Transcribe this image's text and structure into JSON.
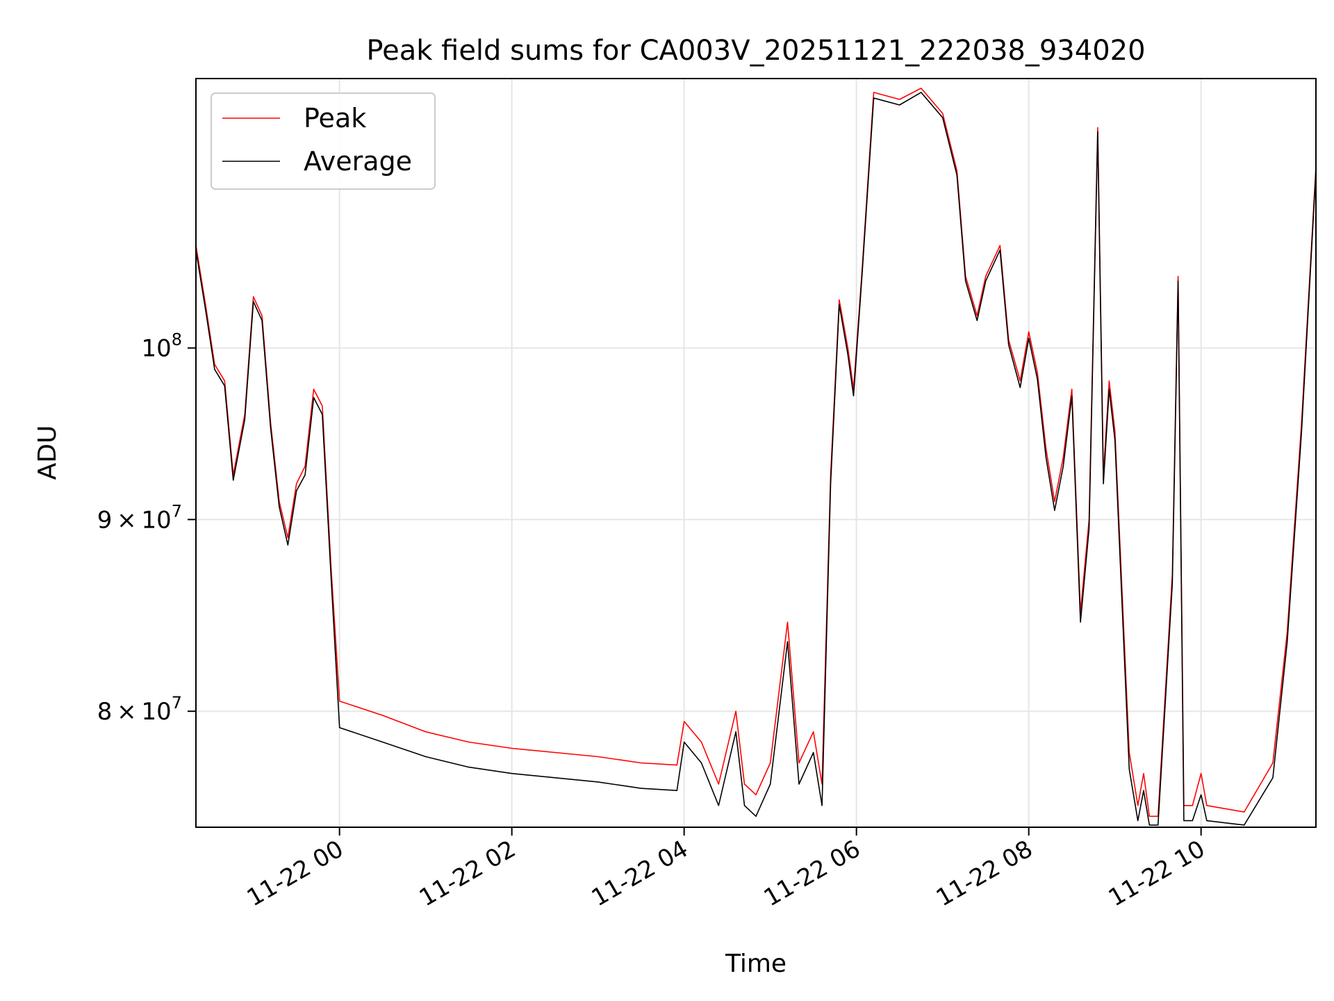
{
  "chart_data": {
    "type": "line",
    "title": "Peak field sums for CA003V_20251121_222038_934020",
    "xlabel": "Time",
    "ylabel": "ADU",
    "xscale": "time",
    "yscale": "log",
    "xlim": [
      "2025-11-21 22:20",
      "2025-11-22 11:20"
    ],
    "ylim": [
      74500000,
      118000000
    ],
    "x_tick_labels": [
      "11-22 00",
      "11-22 02",
      "11-22 04",
      "11-22 06",
      "11-22 08",
      "11-22 10"
    ],
    "x_ticks": [
      "2025-11-22 00:00",
      "2025-11-22 02:00",
      "2025-11-22 04:00",
      "2025-11-22 06:00",
      "2025-11-22 08:00",
      "2025-11-22 10:00"
    ],
    "y_ticks": [
      {
        "value": 80000000,
        "mantissa": "8",
        "base": "10",
        "exponent": "7"
      },
      {
        "value": 90000000,
        "mantissa": "9",
        "base": "10",
        "exponent": "7"
      },
      {
        "value": 100000000,
        "mantissa": "",
        "base": "10",
        "exponent": "8"
      }
    ],
    "grid": true,
    "legend": {
      "placement": "top-left"
    },
    "series": [
      {
        "name": "Peak",
        "color": "#ff0000",
        "x": [
          "2025-11-21 22:20",
          "2025-11-21 22:27",
          "2025-11-21 22:33",
          "2025-11-21 22:40",
          "2025-11-21 22:46",
          "2025-11-21 22:54",
          "2025-11-21 23:00",
          "2025-11-21 23:06",
          "2025-11-21 23:12",
          "2025-11-21 23:18",
          "2025-11-21 23:24",
          "2025-11-21 23:30",
          "2025-11-21 23:36",
          "2025-11-21 23:42",
          "2025-11-21 23:48",
          "2025-11-21 23:54",
          "2025-11-22 00:00",
          "2025-11-22 00:30",
          "2025-11-22 01:00",
          "2025-11-22 01:30",
          "2025-11-22 02:00",
          "2025-11-22 02:30",
          "2025-11-22 03:00",
          "2025-11-22 03:30",
          "2025-11-22 03:55",
          "2025-11-22 04:00",
          "2025-11-22 04:12",
          "2025-11-22 04:24",
          "2025-11-22 04:36",
          "2025-11-22 04:42",
          "2025-11-22 04:50",
          "2025-11-22 05:00",
          "2025-11-22 05:12",
          "2025-11-22 05:20",
          "2025-11-22 05:30",
          "2025-11-22 05:36",
          "2025-11-22 05:42",
          "2025-11-22 05:48",
          "2025-11-22 05:54",
          "2025-11-22 05:58",
          "2025-11-22 06:04",
          "2025-11-22 06:12",
          "2025-11-22 06:30",
          "2025-11-22 06:45",
          "2025-11-22 07:00",
          "2025-11-22 07:10",
          "2025-11-22 07:16",
          "2025-11-22 07:24",
          "2025-11-22 07:30",
          "2025-11-22 07:40",
          "2025-11-22 07:46",
          "2025-11-22 07:54",
          "2025-11-22 08:00",
          "2025-11-22 08:06",
          "2025-11-22 08:12",
          "2025-11-22 08:18",
          "2025-11-22 08:24",
          "2025-11-22 08:30",
          "2025-11-22 08:36",
          "2025-11-22 08:42",
          "2025-11-22 08:48",
          "2025-11-22 08:52",
          "2025-11-22 08:56",
          "2025-11-22 09:00",
          "2025-11-22 09:10",
          "2025-11-22 09:16",
          "2025-11-22 09:20",
          "2025-11-22 09:24",
          "2025-11-22 09:30",
          "2025-11-22 09:40",
          "2025-11-22 09:44",
          "2025-11-22 09:48",
          "2025-11-22 09:54",
          "2025-11-22 10:00",
          "2025-11-22 10:04",
          "2025-11-22 10:30",
          "2025-11-22 10:50",
          "2025-11-22 11:00",
          "2025-11-22 11:10",
          "2025-11-22 11:20"
        ],
        "values": [
          106500000,
          102500000,
          99000000,
          98000000,
          92500000,
          96000000,
          103200000,
          102000000,
          95500000,
          91000000,
          89000000,
          92000000,
          93000000,
          97500000,
          96500000,
          87500000,
          80500000,
          79800000,
          79000000,
          78500000,
          78200000,
          78000000,
          77800000,
          77500000,
          77400000,
          79500000,
          78500000,
          76500000,
          80000000,
          76500000,
          76000000,
          77500000,
          84500000,
          77500000,
          79000000,
          76500000,
          92500000,
          103000000,
          100000000,
          97500000,
          105000000,
          117000000,
          116500000,
          117300000,
          115500000,
          111500000,
          104500000,
          102000000,
          104500000,
          106500000,
          100500000,
          98000000,
          101000000,
          98500000,
          94000000,
          91000000,
          93500000,
          97500000,
          85000000,
          90000000,
          114500000,
          92500000,
          98000000,
          95000000,
          78000000,
          75500000,
          77000000,
          75000000,
          75000000,
          87000000,
          104500000,
          75500000,
          75500000,
          77000000,
          75500000,
          75200000,
          77500000,
          84000000,
          95500000,
          111800000
        ]
      },
      {
        "name": "Average",
        "color": "#000000",
        "x": [
          "2025-11-21 22:20",
          "2025-11-21 22:27",
          "2025-11-21 22:33",
          "2025-11-21 22:40",
          "2025-11-21 22:46",
          "2025-11-21 22:54",
          "2025-11-21 23:00",
          "2025-11-21 23:06",
          "2025-11-21 23:12",
          "2025-11-21 23:18",
          "2025-11-21 23:24",
          "2025-11-21 23:30",
          "2025-11-21 23:36",
          "2025-11-21 23:42",
          "2025-11-21 23:48",
          "2025-11-21 23:54",
          "2025-11-22 00:00",
          "2025-11-22 00:30",
          "2025-11-22 01:00",
          "2025-11-22 01:30",
          "2025-11-22 02:00",
          "2025-11-22 02:30",
          "2025-11-22 03:00",
          "2025-11-22 03:30",
          "2025-11-22 03:55",
          "2025-11-22 04:00",
          "2025-11-22 04:12",
          "2025-11-22 04:24",
          "2025-11-22 04:36",
          "2025-11-22 04:42",
          "2025-11-22 04:50",
          "2025-11-22 05:00",
          "2025-11-22 05:12",
          "2025-11-22 05:20",
          "2025-11-22 05:30",
          "2025-11-22 05:36",
          "2025-11-22 05:42",
          "2025-11-22 05:48",
          "2025-11-22 05:54",
          "2025-11-22 05:58",
          "2025-11-22 06:04",
          "2025-11-22 06:12",
          "2025-11-22 06:30",
          "2025-11-22 06:45",
          "2025-11-22 07:00",
          "2025-11-22 07:10",
          "2025-11-22 07:16",
          "2025-11-22 07:24",
          "2025-11-22 07:30",
          "2025-11-22 07:40",
          "2025-11-22 07:46",
          "2025-11-22 07:54",
          "2025-11-22 08:00",
          "2025-11-22 08:06",
          "2025-11-22 08:12",
          "2025-11-22 08:18",
          "2025-11-22 08:24",
          "2025-11-22 08:30",
          "2025-11-22 08:36",
          "2025-11-22 08:42",
          "2025-11-22 08:48",
          "2025-11-22 08:52",
          "2025-11-22 08:56",
          "2025-11-22 09:00",
          "2025-11-22 09:10",
          "2025-11-22 09:16",
          "2025-11-22 09:20",
          "2025-11-22 09:24",
          "2025-11-22 09:30",
          "2025-11-22 09:40",
          "2025-11-22 09:44",
          "2025-11-22 09:48",
          "2025-11-22 09:54",
          "2025-11-22 10:00",
          "2025-11-22 10:04",
          "2025-11-22 10:30",
          "2025-11-22 10:50",
          "2025-11-22 11:00",
          "2025-11-22 11:10",
          "2025-11-22 11:20"
        ],
        "values": [
          106200000,
          102200000,
          98700000,
          97700000,
          92200000,
          95700000,
          102900000,
          101700000,
          95200000,
          90700000,
          88600000,
          91600000,
          92500000,
          97000000,
          96000000,
          87000000,
          79200000,
          78500000,
          77800000,
          77300000,
          77000000,
          76800000,
          76600000,
          76300000,
          76200000,
          78500000,
          77500000,
          75500000,
          79000000,
          75500000,
          75000000,
          76500000,
          83500000,
          76500000,
          78000000,
          75500000,
          92000000,
          102700000,
          99600000,
          97100000,
          104700000,
          116600000,
          116100000,
          117000000,
          115200000,
          111200000,
          104200000,
          101700000,
          104200000,
          106200000,
          100200000,
          97600000,
          100600000,
          98100000,
          93500000,
          90500000,
          93000000,
          97100000,
          84500000,
          89500000,
          114200000,
          92000000,
          97500000,
          94500000,
          77200000,
          74800000,
          76200000,
          74600000,
          74600000,
          86500000,
          104200000,
          74800000,
          74800000,
          76000000,
          74800000,
          74600000,
          76800000,
          83500000,
          95000000,
          111500000
        ]
      }
    ]
  }
}
